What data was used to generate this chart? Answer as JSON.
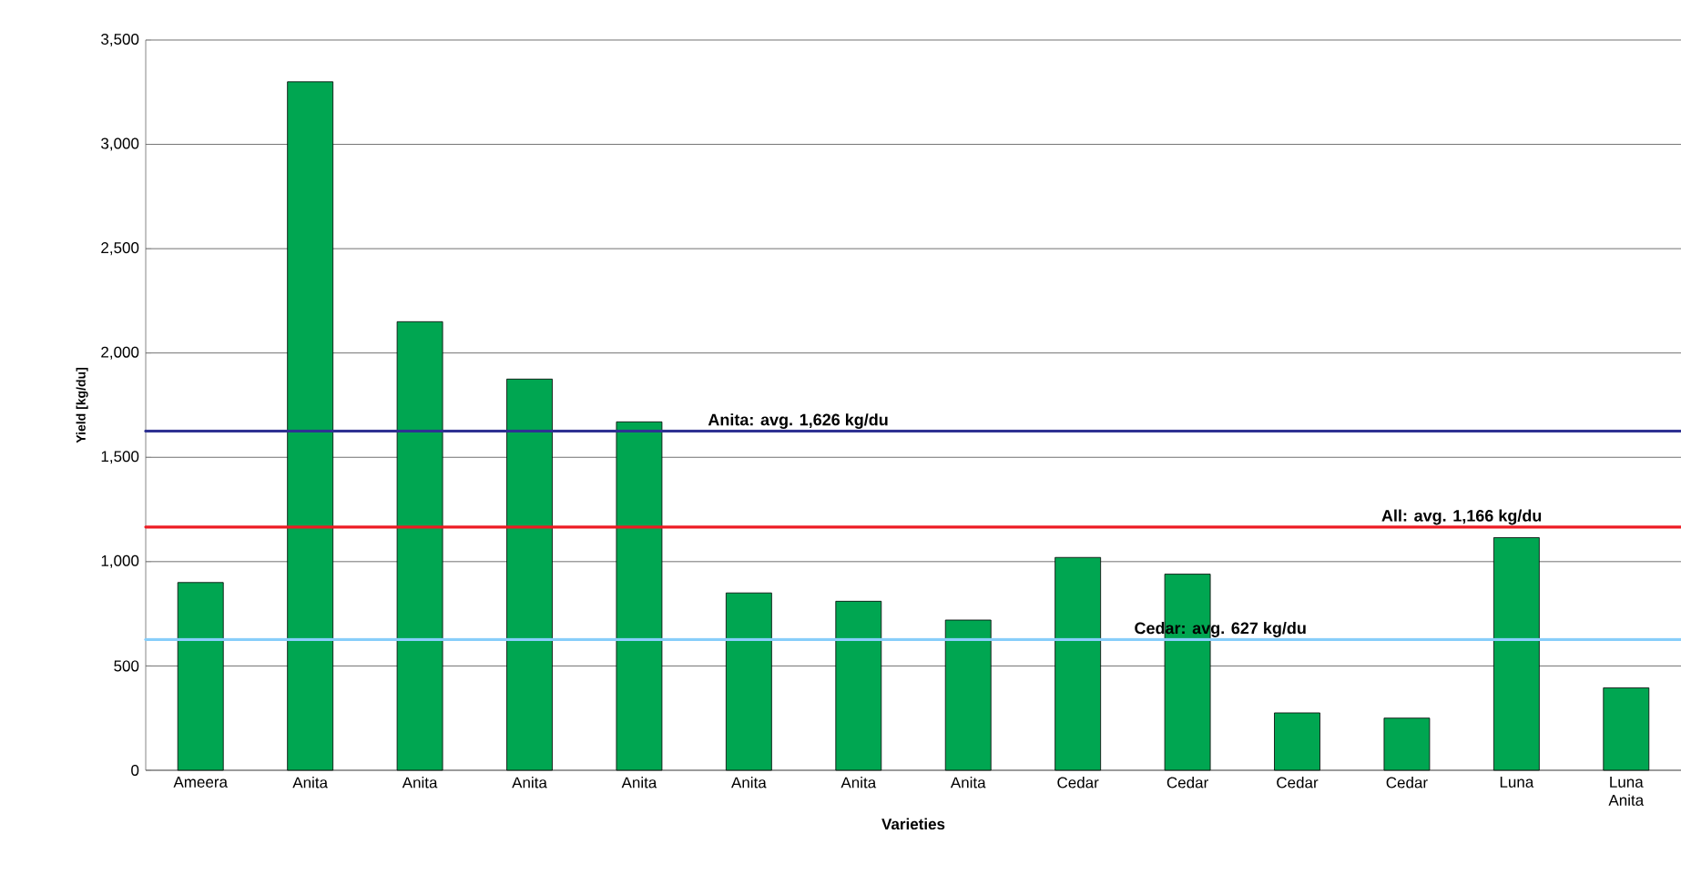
{
  "chart_data": {
    "type": "bar",
    "xlabel": "Varieties",
    "ylabel": "Yield [kg/du]",
    "categories": [
      "Ameera",
      "Anita",
      "Anita",
      "Anita",
      "Anita",
      "Anita",
      "Anita",
      "Anita",
      "Cedar",
      "Cedar",
      "Cedar",
      "Cedar",
      "Luna",
      "Luna Anita"
    ],
    "values": [
      900,
      3300,
      2150,
      1875,
      1670,
      850,
      810,
      720,
      1020,
      940,
      275,
      250,
      1115,
      395
    ],
    "color": "#00a651",
    "ylim": [
      0,
      3500
    ],
    "yticks": [
      {
        "value": 0,
        "label": "0"
      },
      {
        "value": 500,
        "label": "500"
      },
      {
        "value": 1000,
        "label": "1,000"
      },
      {
        "value": 1500,
        "label": "1,500"
      },
      {
        "value": 2000,
        "label": "2,000"
      },
      {
        "value": 2500,
        "label": "2,500"
      },
      {
        "value": 3000,
        "label": "3,000"
      },
      {
        "value": 3500,
        "label": "3,500"
      }
    ],
    "grid": "y",
    "ref_lines": [
      {
        "axis": "y",
        "value": 1626,
        "label": "Anita: avg. 1,626 kg/du",
        "color": "#2e3192"
      },
      {
        "axis": "y",
        "value": 1166,
        "label": "All: avg. 1,166  kg/du",
        "color": "#ed1c24"
      },
      {
        "axis": "y",
        "value": 627,
        "label": "Cedar: avg. 627 kg/du",
        "color": "#87cefa"
      }
    ]
  }
}
